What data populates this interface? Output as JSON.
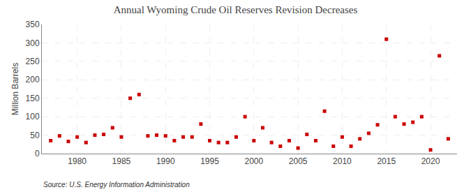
{
  "chart_data": {
    "type": "scatter",
    "title": "Annual Wyoming Crude Oil Reserves Revision Decreases",
    "ylabel": "Million Barrels",
    "annotations": [
      "Source: U.S. Energy Information Administration"
    ],
    "x": [
      1977,
      1978,
      1979,
      1980,
      1981,
      1982,
      1983,
      1984,
      1985,
      1986,
      1987,
      1988,
      1989,
      1990,
      1991,
      1992,
      1993,
      1994,
      1995,
      1996,
      1997,
      1998,
      1999,
      2000,
      2001,
      2002,
      2003,
      2004,
      2005,
      2006,
      2007,
      2008,
      2009,
      2010,
      2011,
      2012,
      2013,
      2014,
      2015,
      2016,
      2017,
      2018,
      2019,
      2020,
      2021,
      2022
    ],
    "values": [
      35,
      48,
      33,
      45,
      30,
      50,
      52,
      70,
      45,
      150,
      160,
      48,
      50,
      48,
      35,
      45,
      45,
      80,
      35,
      30,
      30,
      45,
      100,
      35,
      70,
      30,
      20,
      35,
      15,
      52,
      35,
      115,
      20,
      45,
      20,
      40,
      55,
      78,
      310,
      100,
      80,
      85,
      100,
      10,
      265,
      40
    ],
    "color": "#cc0000",
    "marker": "square",
    "xlim": [
      1976,
      2023
    ],
    "xticks": [
      1980,
      1985,
      1990,
      1995,
      2000,
      2005,
      2010,
      2015,
      2020
    ],
    "ylim": [
      0,
      350
    ],
    "yticks": [
      0,
      50,
      100,
      150,
      200,
      250,
      300,
      350
    ],
    "grid": true
  }
}
